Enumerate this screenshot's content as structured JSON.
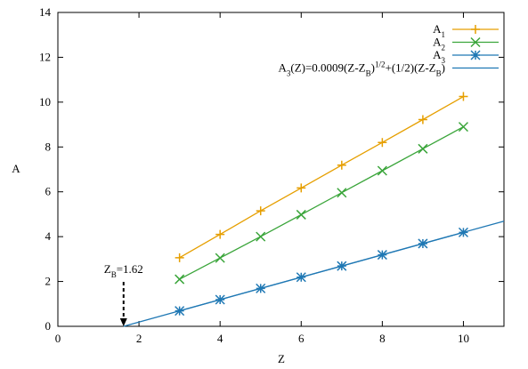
{
  "chart_data": {
    "type": "line",
    "xlabel": "Z",
    "ylabel": "A",
    "xlim": [
      0,
      11
    ],
    "xticks": [
      0,
      2,
      4,
      6,
      8,
      10
    ],
    "ylim": [
      0,
      14
    ],
    "yticks": [
      0,
      2,
      4,
      6,
      8,
      10,
      12,
      14
    ],
    "grid": false,
    "legend": "top-right",
    "series": [
      {
        "name": [
          {
            "text": "A"
          },
          {
            "text": "1",
            "shift": "sub"
          }
        ],
        "color": "#e69f00",
        "marker": "plus",
        "x": [
          3,
          4,
          5,
          6,
          7,
          8,
          9,
          10
        ],
        "values": [
          3.06,
          4.1,
          5.15,
          6.17,
          7.19,
          8.2,
          9.22,
          10.25
        ]
      },
      {
        "name": [
          {
            "text": "A"
          },
          {
            "text": "2",
            "shift": "sub"
          }
        ],
        "color": "#3aa53a",
        "marker": "cross",
        "x": [
          3,
          4,
          5,
          6,
          7,
          8,
          9,
          10
        ],
        "values": [
          2.1,
          3.05,
          4.0,
          4.98,
          5.96,
          6.94,
          7.92,
          8.9
        ]
      },
      {
        "name": [
          {
            "text": "A"
          },
          {
            "text": "3",
            "shift": "sub"
          }
        ],
        "color": "#1f78b4",
        "marker": "star",
        "x": [
          3,
          4,
          5,
          6,
          7,
          8,
          9,
          10
        ],
        "values": [
          0.69,
          1.19,
          1.69,
          2.19,
          2.69,
          3.19,
          3.69,
          4.19
        ]
      },
      {
        "name": [
          {
            "text": "A"
          },
          {
            "text": "3",
            "shift": "sub"
          },
          {
            "text": "(Z)=0.0009(Z-Z"
          },
          {
            "text": "B",
            "shift": "sub"
          },
          {
            "text": ")"
          },
          {
            "text": "1/2",
            "shift": "super"
          },
          {
            "text": "+(1/2)(Z-Z"
          },
          {
            "text": "B",
            "shift": "sub"
          },
          {
            "text": ")"
          }
        ],
        "color": "#1f78b4",
        "marker": null,
        "x": [
          1.62,
          11
        ],
        "values": [
          0,
          4.69
        ]
      }
    ],
    "annotation": {
      "runs": [
        {
          "text": "Z"
        },
        {
          "text": "B",
          "shift": "sub"
        },
        {
          "text": "=1.62"
        }
      ],
      "x": 1.62
    }
  }
}
